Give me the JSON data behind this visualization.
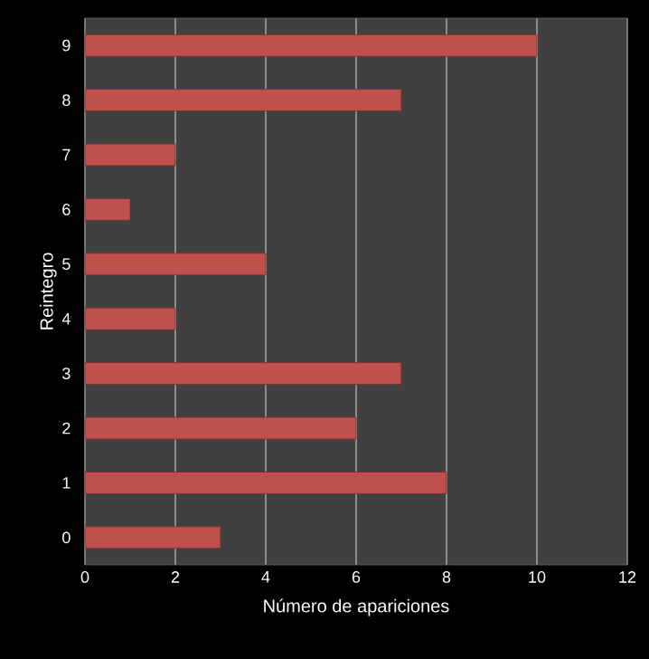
{
  "chart_data": {
    "type": "bar",
    "orientation": "horizontal",
    "categories": [
      "9",
      "8",
      "7",
      "6",
      "5",
      "4",
      "3",
      "2",
      "1",
      "0"
    ],
    "values": [
      10,
      7,
      2,
      1,
      4,
      2,
      7,
      6,
      8,
      3
    ],
    "color": "#c0504d",
    "xlabel": "Número de apariciones",
    "ylabel": "Reintegro",
    "xlim": [
      0,
      12
    ],
    "xticks": [
      0,
      2,
      4,
      6,
      8,
      10,
      12
    ],
    "grid": "x"
  }
}
